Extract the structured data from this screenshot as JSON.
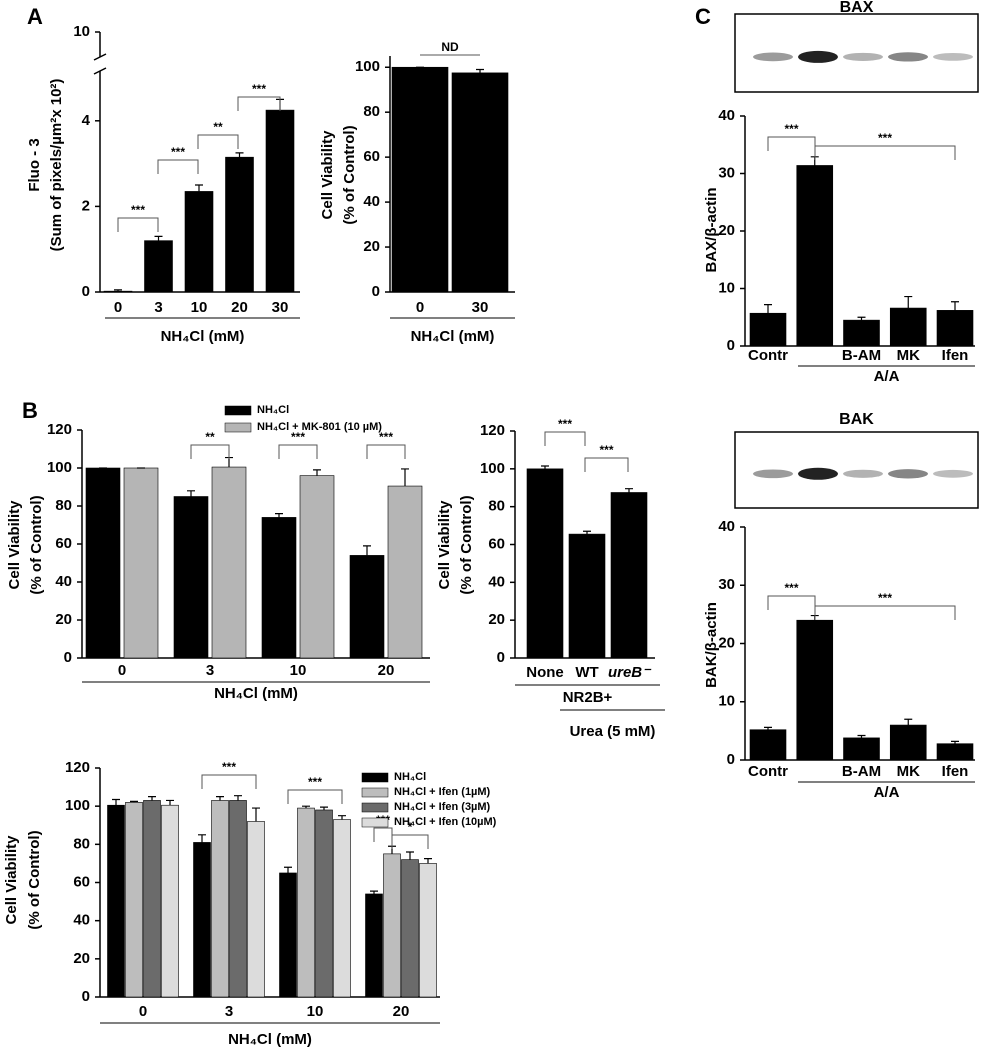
{
  "chart_data": [
    {
      "type": "bar",
      "panel": "A",
      "ylabel": [
        "Fluo - 3",
        "(Sum of pixels/µm²x 10²)"
      ],
      "xlabel": "NH₄Cl (mM)",
      "categories": [
        "0",
        "3",
        "10",
        "20",
        "30"
      ],
      "series": [
        {
          "color": "#000000",
          "values": [
            0.02,
            1.2,
            2.35,
            3.15,
            4.25
          ],
          "errors": [
            0.03,
            0.1,
            0.15,
            0.1,
            0.25
          ]
        }
      ],
      "ylim": [
        0,
        10
      ],
      "y_break": [
        5,
        9.5
      ],
      "yticks": [
        0,
        2,
        4,
        10
      ],
      "annotations": [
        "***",
        "***",
        "**",
        "***"
      ]
    },
    {
      "type": "bar",
      "ylabel": [
        "Cell Viability",
        "(% of Control)"
      ],
      "xlabel": "NH₄Cl (mM)",
      "categories": [
        "0",
        "30"
      ],
      "series": [
        {
          "color": "#000000",
          "values": [
            100,
            97.5
          ],
          "errors": [
            0,
            1.5
          ]
        }
      ],
      "ylim": [
        0,
        105
      ],
      "yticks": [
        0,
        20,
        40,
        60,
        80,
        100
      ],
      "annotations": [
        "ND"
      ]
    },
    {
      "type": "bar",
      "panel": "C",
      "title": "BAX",
      "ylabel": [
        "BAX/β-actin"
      ],
      "categories": [
        "Contr",
        null,
        "B-AM",
        "MK",
        "Ifen"
      ],
      "groups": [
        "A/A"
      ],
      "series": [
        {
          "color": "#000000",
          "values": [
            5.7,
            31.4,
            4.5,
            6.6,
            6.2
          ],
          "errors": [
            1.5,
            1.5,
            0.5,
            2,
            1.5
          ]
        }
      ],
      "ylim": [
        0,
        40
      ],
      "yticks": [
        0,
        10,
        20,
        30,
        40
      ],
      "annotations": [
        "***",
        "***"
      ]
    },
    {
      "type": "bar",
      "title": "BAK",
      "ylabel": [
        "BAK/β-actin"
      ],
      "categories": [
        "Contr",
        null,
        "B-AM",
        "MK",
        "Ifen"
      ],
      "groups": [
        "A/A"
      ],
      "series": [
        {
          "color": "#000000",
          "values": [
            5.2,
            24,
            3.8,
            6,
            2.8
          ],
          "errors": [
            0.4,
            0.8,
            0.4,
            1,
            0.4
          ]
        }
      ],
      "ylim": [
        0,
        40
      ],
      "yticks": [
        0,
        10,
        20,
        30,
        40
      ],
      "annotations": [
        "***",
        "***"
      ]
    },
    {
      "type": "bar",
      "panel": "B",
      "ylabel": [
        "Cell Viability",
        "(% of Control)"
      ],
      "xlabel": "NH₄Cl (mM)",
      "categories": [
        "0",
        "3",
        "10",
        "20"
      ],
      "series": [
        {
          "name": "NH₄Cl",
          "color": "#000000",
          "values": [
            100,
            85,
            74,
            54
          ],
          "errors": [
            0,
            3,
            2,
            5
          ]
        },
        {
          "name": "NH₄Cl + MK-801 (10 µM)",
          "color": "#b5b5b5",
          "values": [
            100,
            100.5,
            96,
            90.5
          ],
          "errors": [
            0,
            5,
            3,
            9
          ]
        }
      ],
      "ylim": [
        0,
        120
      ],
      "yticks": [
        0,
        20,
        40,
        60,
        80,
        100,
        120
      ],
      "annotations": [
        "**",
        "***",
        "***"
      ]
    },
    {
      "type": "bar",
      "ylabel": [
        "Cell Viability",
        "(% of Control)"
      ],
      "categories": [
        "None",
        "WT",
        "ureB⁻"
      ],
      "groups": [
        "NR2B+",
        "Urea (5 mM)"
      ],
      "series": [
        {
          "color": "#000000",
          "values": [
            100,
            65.5,
            87.5
          ],
          "errors": [
            1.5,
            1.5,
            2
          ]
        }
      ],
      "ylim": [
        0,
        120
      ],
      "yticks": [
        0,
        20,
        40,
        60,
        80,
        100,
        120
      ],
      "annotations": [
        "***",
        "***"
      ]
    },
    {
      "type": "bar",
      "ylabel": [
        "Cell Viability",
        "(% of Control)"
      ],
      "xlabel": "NH₄Cl (mM)",
      "categories": [
        "0",
        "3",
        "10",
        "20"
      ],
      "series": [
        {
          "name": "NH₄Cl",
          "color": "#000000",
          "values": [
            100.5,
            81,
            65,
            54
          ],
          "errors": [
            3,
            4,
            3,
            1.5
          ]
        },
        {
          "name": "NH₄Cl + Ifen (1µM)",
          "color": "#bdbdbd",
          "values": [
            102,
            103,
            99,
            75
          ],
          "errors": [
            0.5,
            2,
            1,
            4
          ]
        },
        {
          "name": "NH₄Cl + Ifen (3µM)",
          "color": "#6b6b6b",
          "values": [
            103,
            103,
            98,
            72
          ],
          "errors": [
            2,
            2.5,
            1.5,
            4
          ]
        },
        {
          "name": "NH₄Cl + Ifen (10µM)",
          "color": "#dcdcdc",
          "values": [
            100.5,
            92,
            93,
            70
          ],
          "errors": [
            2.5,
            7,
            2,
            2.5
          ]
        }
      ],
      "ylim": [
        0,
        120
      ],
      "yticks": [
        0,
        20,
        40,
        60,
        80,
        100,
        120
      ],
      "annotations": [
        "***",
        "***",
        "***",
        "*"
      ]
    }
  ]
}
